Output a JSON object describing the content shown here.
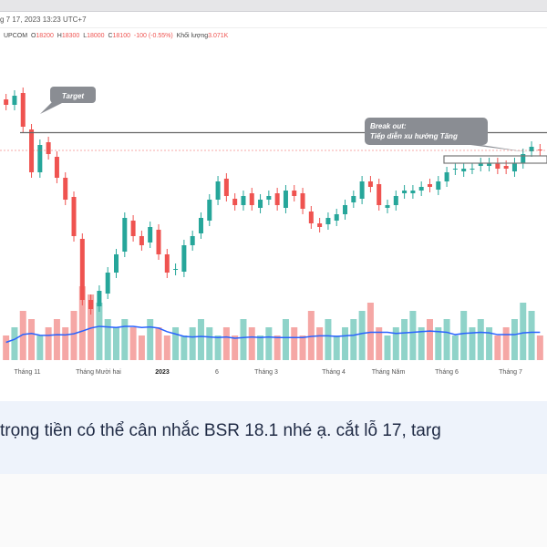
{
  "header": {
    "date": "g 7 17, 2023 13:23 UTC+7",
    "exchange": "UPCOM",
    "open_label": "O",
    "open": "18200",
    "high_label": "H",
    "high": "18300",
    "low_label": "L",
    "low": "18000",
    "close_label": "C",
    "close": "18100",
    "change": "-100 (-0.55%)",
    "volume_label": "Khối lượng",
    "volume": "3.071K"
  },
  "annotations": {
    "target": "Target",
    "breakout_line1": "Break out:",
    "breakout_line2": "Tiếp diễn xu hướng Tăng"
  },
  "x_axis": [
    "Tháng 11",
    "Tháng Mười hai",
    "2023",
    "6",
    "Tháng 3",
    "Tháng 4",
    "Tháng Năm",
    "Tháng 6",
    "Tháng 7"
  ],
  "colors": {
    "up": "#26a69a",
    "down": "#ef5350",
    "ma": "#2962ff",
    "annotation": "#8a8d93"
  },
  "chart_data": {
    "type": "candlestick",
    "close": [
      20.6,
      21.1,
      19.4,
      16.9,
      18.4,
      17.9,
      16.6,
      15.4,
      13.4,
      9.9,
      9.4,
      10.4,
      11.4,
      12.4,
      14.4,
      13.4,
      12.9,
      13.9,
      12.4,
      11.4,
      11.6,
      12.9,
      13.4,
      14.4,
      15.4,
      16.4,
      15.6,
      15.1,
      15.6,
      15.1,
      15.4,
      15.6,
      15.1,
      15.9,
      15.6,
      14.9,
      14.1,
      13.9,
      14.4,
      14.6,
      15.1,
      15.6,
      16.4,
      16.1,
      15.1,
      15.1,
      15.6,
      15.9,
      15.9,
      16.1,
      16.1,
      16.4,
      16.9,
      17.1,
      17.1,
      17.1,
      17.4,
      17.4,
      17.1,
      17.1,
      17.4,
      17.9,
      18.3,
      18.1
    ],
    "volume": [
      3,
      4,
      6,
      5,
      3,
      4,
      5,
      4,
      6,
      9,
      8,
      7,
      5,
      4,
      5,
      4,
      3,
      5,
      4,
      3,
      4,
      3,
      4,
      5,
      4,
      3,
      4,
      3,
      5,
      4,
      3,
      4,
      3,
      5,
      4,
      3,
      6,
      4,
      5,
      3,
      4,
      5,
      6,
      7,
      4,
      3,
      4,
      5,
      6,
      4,
      5,
      4,
      5,
      3,
      6,
      4,
      5,
      4,
      3,
      4,
      5,
      7,
      6,
      3
    ],
    "target_price": 19.1,
    "breakout_zone": [
      17.4,
      17.8
    ]
  },
  "message": {
    "text": "trọng tiền có thể cân nhắc BSR 18.1 nhé ạ. cắt lỗ 17, targ"
  }
}
